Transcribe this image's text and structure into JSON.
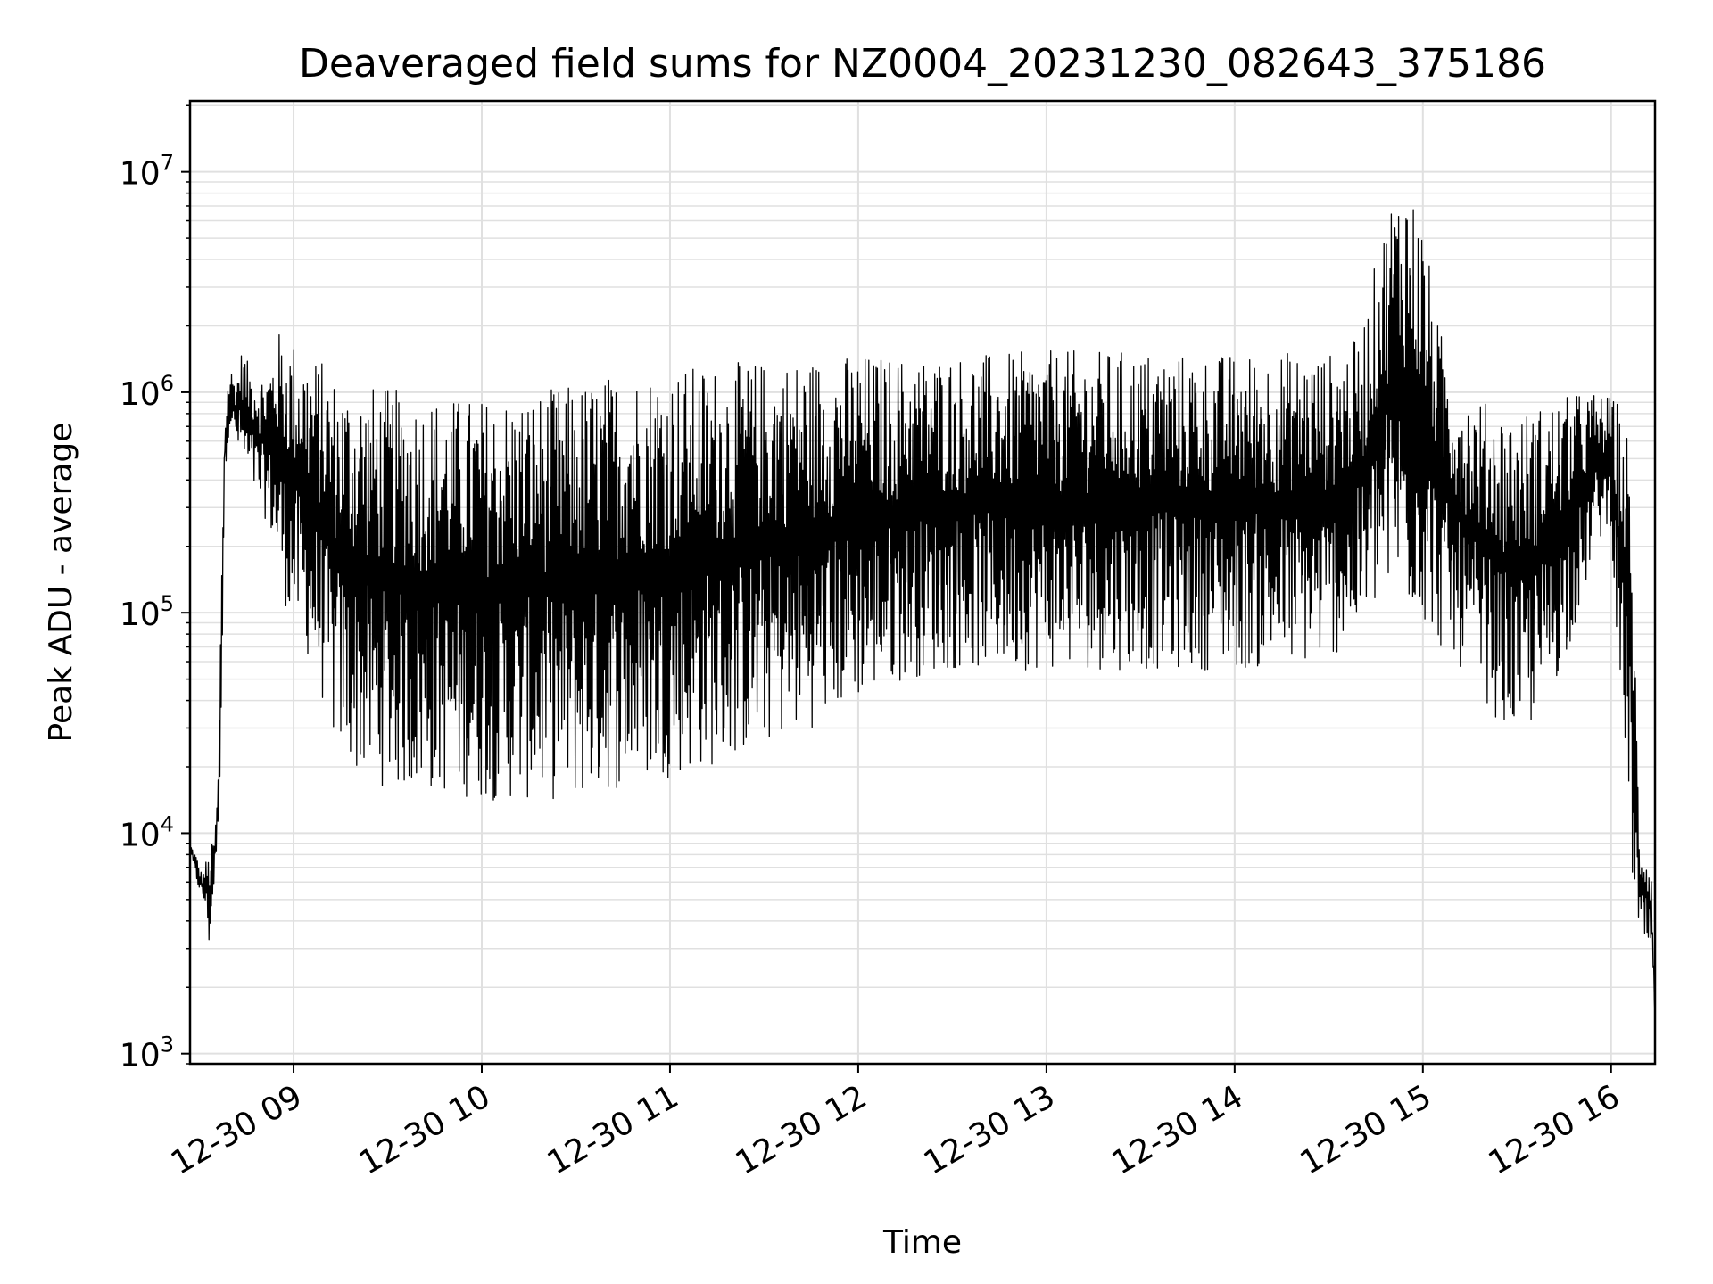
{
  "chart_data": {
    "type": "line",
    "title": "Deaveraged field sums for NZ0004_20231230_082643_375186",
    "xlabel": "Time",
    "ylabel": "Peak ADU - average",
    "yscale": "log",
    "ylim": [
      900,
      21000000
    ],
    "xlim": [
      "2023-12-30 08:27",
      "2023-12-30 16:14"
    ],
    "grid": true,
    "x_ticks": [
      {
        "value": "2023-12-30 09:00",
        "label": "12-30 09"
      },
      {
        "value": "2023-12-30 10:00",
        "label": "12-30 10"
      },
      {
        "value": "2023-12-30 11:00",
        "label": "12-30 11"
      },
      {
        "value": "2023-12-30 12:00",
        "label": "12-30 12"
      },
      {
        "value": "2023-12-30 13:00",
        "label": "12-30 13"
      },
      {
        "value": "2023-12-30 14:00",
        "label": "12-30 14"
      },
      {
        "value": "2023-12-30 15:00",
        "label": "12-30 15"
      },
      {
        "value": "2023-12-30 16:00",
        "label": "12-30 16"
      }
    ],
    "y_ticks": [
      {
        "value": 1000,
        "base": "10",
        "exp": "3"
      },
      {
        "value": 10000,
        "base": "10",
        "exp": "4"
      },
      {
        "value": 100000,
        "base": "10",
        "exp": "5"
      },
      {
        "value": 1000000,
        "base": "10",
        "exp": "6"
      },
      {
        "value": 10000000,
        "base": "10",
        "exp": "7"
      }
    ],
    "series": [
      {
        "color": "#000000",
        "x": [
          "2023-12-30 08:27",
          "2023-12-30 08:28",
          "2023-12-30 08:29",
          "2023-12-30 08:30",
          "2023-12-30 08:31",
          "2023-12-30 08:32",
          "2023-12-30 08:33",
          "2023-12-30 08:34",
          "2023-12-30 08:35",
          "2023-12-30 08:36",
          "2023-12-30 08:37",
          "2023-12-30 08:38",
          "2023-12-30 08:39",
          "2023-12-30 08:40",
          "2023-12-30 08:41",
          "2023-12-30 08:42",
          "2023-12-30 08:43",
          "2023-12-30 08:44",
          "2023-12-30 08:45",
          "2023-12-30 08:47",
          "2023-12-30 08:49",
          "2023-12-30 08:52",
          "2023-12-30 08:55",
          "2023-12-30 08:58",
          "2023-12-30 09:01",
          "2023-12-30 09:05",
          "2023-12-30 09:09",
          "2023-12-30 09:13",
          "2023-12-30 09:18",
          "2023-12-30 09:23",
          "2023-12-30 09:30",
          "2023-12-30 09:40",
          "2023-12-30 09:50",
          "2023-12-30 10:00",
          "2023-12-30 10:15",
          "2023-12-30 10:30",
          "2023-12-30 10:45",
          "2023-12-30 11:00",
          "2023-12-30 11:15",
          "2023-12-30 11:30",
          "2023-12-30 11:45",
          "2023-12-30 12:00",
          "2023-12-30 12:15",
          "2023-12-30 12:30",
          "2023-12-30 12:45",
          "2023-12-30 13:00",
          "2023-12-30 13:15",
          "2023-12-30 13:30",
          "2023-12-30 13:45",
          "2023-12-30 14:00",
          "2023-12-30 14:15",
          "2023-12-30 14:30",
          "2023-12-30 14:40",
          "2023-12-30 14:45",
          "2023-12-30 14:50",
          "2023-12-30 14:55",
          "2023-12-30 15:00",
          "2023-12-30 15:05",
          "2023-12-30 15:10",
          "2023-12-30 15:15",
          "2023-12-30 15:20",
          "2023-12-30 15:25",
          "2023-12-30 15:30",
          "2023-12-30 15:35",
          "2023-12-30 15:40",
          "2023-12-30 15:45",
          "2023-12-30 15:50",
          "2023-12-30 15:55",
          "2023-12-30 16:00",
          "2023-12-30 16:03",
          "2023-12-30 16:05",
          "2023-12-30 16:07",
          "2023-12-30 16:09",
          "2023-12-30 16:11",
          "2023-12-30 16:13",
          "2023-12-30 16:14"
        ],
        "upper": [
          9000,
          8500,
          8000,
          7000,
          6500,
          7500,
          8000,
          9000,
          10000,
          20000,
          150000,
          700000,
          1100000,
          1300000,
          1200000,
          1200000,
          1500000,
          1600000,
          1400000,
          1300000,
          1200000,
          1300000,
          1900000,
          1800000,
          1700000,
          1500000,
          1400000,
          1200000,
          1100000,
          1100000,
          1050000,
          1000000,
          950000,
          950000,
          1000000,
          1100000,
          1250000,
          1300000,
          1350000,
          1400000,
          1450000,
          1500000,
          1450000,
          1500000,
          1500000,
          1550000,
          1550000,
          1550000,
          1500000,
          1500000,
          1550000,
          1500000,
          1800000,
          4000000,
          8000000,
          10000000,
          6000000,
          2000000,
          1300000,
          1000000,
          900000,
          850000,
          800000,
          850000,
          900000,
          950000,
          1000000,
          1000000,
          950000,
          900000,
          700000,
          200000,
          10000,
          9000,
          7000,
          1500
        ],
        "lower": [
          8000,
          7000,
          6000,
          5500,
          5000,
          4500,
          3000,
          4000,
          7000,
          9000,
          30000,
          400000,
          600000,
          700000,
          600000,
          550000,
          500000,
          450000,
          400000,
          350000,
          300000,
          250000,
          150000,
          100000,
          80000,
          60000,
          40000,
          25000,
          20000,
          17000,
          16000,
          15000,
          15000,
          14000,
          14000,
          14000,
          16000,
          18000,
          20000,
          25000,
          30000,
          40000,
          50000,
          55000,
          55000,
          55000,
          55000,
          55000,
          55000,
          55000,
          55000,
          60000,
          80000,
          100000,
          120000,
          100000,
          90000,
          70000,
          60000,
          50000,
          40000,
          30000,
          28000,
          30000,
          40000,
          60000,
          100000,
          200000,
          250000,
          30000,
          20000,
          5000,
          3000,
          3000,
          2500,
          1400
        ]
      }
    ]
  }
}
